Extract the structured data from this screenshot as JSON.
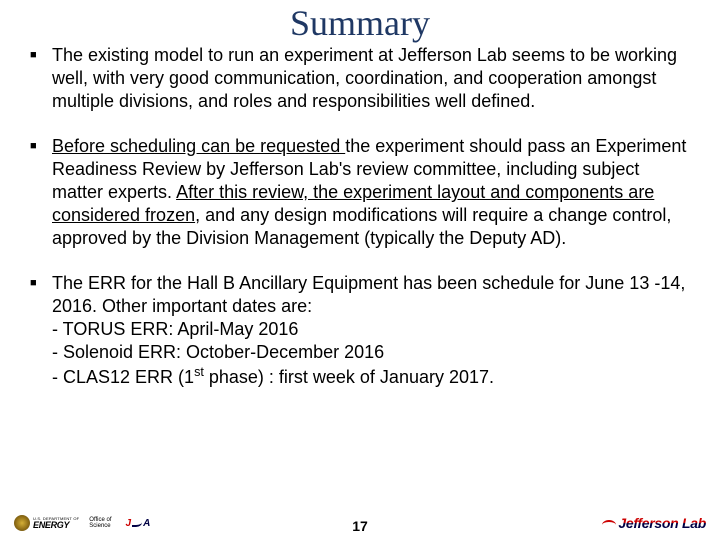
{
  "title": "Summary",
  "title_color": "#1f3864",
  "title_fontsize": 36,
  "body_fontsize": 18,
  "bullets": [
    {
      "runs": [
        {
          "t": "The existing model to run an experiment at Jefferson Lab seems to be working well, with very good communication, coordination, and cooperation amongst multiple divisions, and roles and responsibilities well defined.",
          "u": false
        }
      ]
    },
    {
      "runs": [
        {
          "t": "Before scheduling can be requested ",
          "u": true
        },
        {
          "t": "the experiment should pass an Experiment Readiness Review by Jefferson Lab's review committee, including subject matter experts. ",
          "u": false
        },
        {
          "t": "After this review, the experiment layout and components are considered frozen",
          "u": true
        },
        {
          "t": ", and any design modifications will require a change control, approved by the Division Management (typically the Deputy AD).",
          "u": false
        }
      ]
    },
    {
      "runs": [
        {
          "t": "The ERR for the Hall B Ancillary Equipment has been schedule for June 13 -14, 2016. Other important dates are:",
          "u": false
        }
      ],
      "sublines": [
        "- TORUS ERR: April-May 2016",
        "- Solenoid ERR: October-December 2016",
        "- CLAS12 ERR (1<sup>st</sup> phase) : first week of January 2017."
      ]
    }
  ],
  "footer": {
    "energy_dept": "U.S. DEPARTMENT OF",
    "energy_word": "ENERGY",
    "office_l1": "Office of",
    "office_l2": "Science",
    "jsa": {
      "j": "J",
      "a": "A"
    },
    "page": "17",
    "jlab": "Jefferson Lab"
  }
}
